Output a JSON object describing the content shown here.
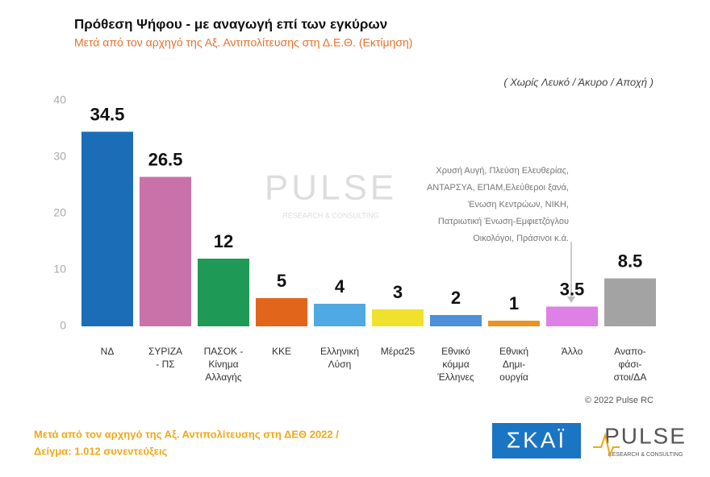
{
  "chart_data": {
    "type": "bar",
    "title": "Πρόθεση Ψήφου - με αναγωγή επί των εγκύρων",
    "subtitle": "Μετά από τον αρχηγό της Αξ. Αντιπολίτευσης στη Δ.Ε.Θ.  (Εκτίμηση)",
    "note": "( Χωρίς Λευκό / Άκυρο / Αποχή )",
    "categories": [
      [
        "ΝΔ"
      ],
      [
        "ΣΥΡΙΖΑ",
        "- ΠΣ"
      ],
      [
        "ΠΑΣΟΚ -",
        "Κίνημα",
        "Αλλαγής"
      ],
      [
        "ΚΚΕ"
      ],
      [
        "Ελληνική",
        "Λύση"
      ],
      [
        "Μέρα25"
      ],
      [
        "Εθνικό",
        "κόμμα",
        "Έλληνες"
      ],
      [
        "Εθνική",
        "Δημι-",
        "ουργία"
      ],
      [
        "Άλλο"
      ],
      [
        "Αναπο-",
        "φάσι-",
        "στοι/ΔΑ"
      ]
    ],
    "values": [
      34.5,
      26.5,
      12,
      5,
      4,
      3,
      2,
      1,
      3.5,
      8.5
    ],
    "colors": [
      "#1b6db8",
      "#c872a9",
      "#1f9a56",
      "#e2651c",
      "#4fa9e2",
      "#efe12c",
      "#4d8fd8",
      "#e99420",
      "#de80e6",
      "#a3a3a3"
    ],
    "ylim": [
      0,
      40
    ],
    "yticks": [
      0,
      10,
      20,
      30,
      40
    ],
    "others_note": [
      "Χρυσή Αυγή, Πλεύση Ελευθερίας,",
      "ΑΝΤΑΡΣΥΑ, ΕΠΑΜ,Ελεύθεροι ξανά,",
      "Ένωση Κεντρώων,  ΝΙΚΗ,",
      "Πατριωτική Ένωση-Εμφιετζόγλου",
      "Οικολόγοι, Πράσινοι   κ.ά."
    ],
    "watermark": "PULSE",
    "watermark_sub": "RESEARCH & CONSULTING",
    "copyright": "© 2022 Pulse RC",
    "footer": [
      "Μετά από τον αρχηγό της Αξ. Αντιπολίτευσης στη ΔΕΘ  2022  /",
      "Δείγμα:  1.012 συνεντεύξεις"
    ],
    "logo_skai": "ΣΚΑΪ",
    "logo_pulse": "PULSE",
    "logo_pulse_sub": "RESEARCH & CONSULTING"
  }
}
